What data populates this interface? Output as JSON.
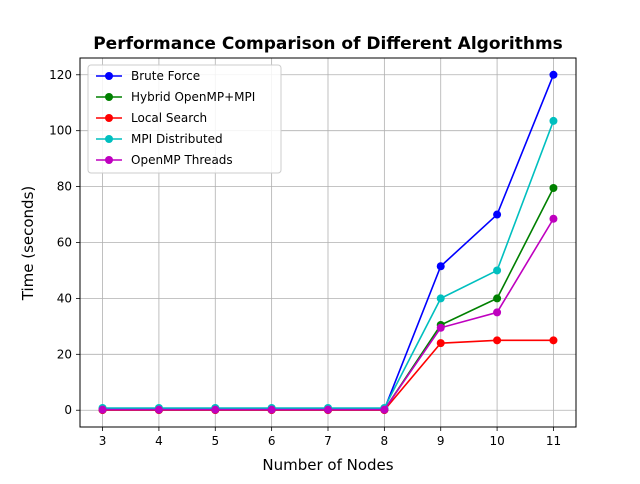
{
  "chart_data": {
    "type": "line",
    "title": "Performance Comparison of Different Algorithms",
    "xlabel": "Number of Nodes",
    "ylabel": "Time (seconds)",
    "x": [
      3,
      4,
      5,
      6,
      7,
      8,
      9,
      10,
      11
    ],
    "xticks": [
      "3",
      "4",
      "5",
      "6",
      "7",
      "8",
      "9",
      "10",
      "11"
    ],
    "yticks": [
      "0",
      "20",
      "40",
      "60",
      "80",
      "100",
      "120"
    ],
    "xlim": [
      2.6,
      11.4
    ],
    "ylim": [
      -6,
      126
    ],
    "grid": true,
    "legend_position": "upper-left",
    "series": [
      {
        "name": "Brute Force",
        "color": "#0000ff",
        "values": [
          0.3,
          0.3,
          0.3,
          0.3,
          0.3,
          0.3,
          51.5,
          70,
          120
        ]
      },
      {
        "name": "Hybrid OpenMP+MPI",
        "color": "#008000",
        "values": [
          0.1,
          0.1,
          0.1,
          0.1,
          0.1,
          0.1,
          30.5,
          40,
          79.5
        ]
      },
      {
        "name": "Local Search",
        "color": "#ff0000",
        "values": [
          0.05,
          0.05,
          0.05,
          0.05,
          0.05,
          0.05,
          24,
          25,
          25
        ]
      },
      {
        "name": "MPI Distributed",
        "color": "#00bfbf",
        "values": [
          0.8,
          0.8,
          0.8,
          0.8,
          0.8,
          0.8,
          40,
          50,
          103.5
        ]
      },
      {
        "name": "OpenMP Threads",
        "color": "#bf00bf",
        "values": [
          0.2,
          0.2,
          0.2,
          0.2,
          0.2,
          0.2,
          29.5,
          35,
          68.5
        ]
      }
    ]
  }
}
